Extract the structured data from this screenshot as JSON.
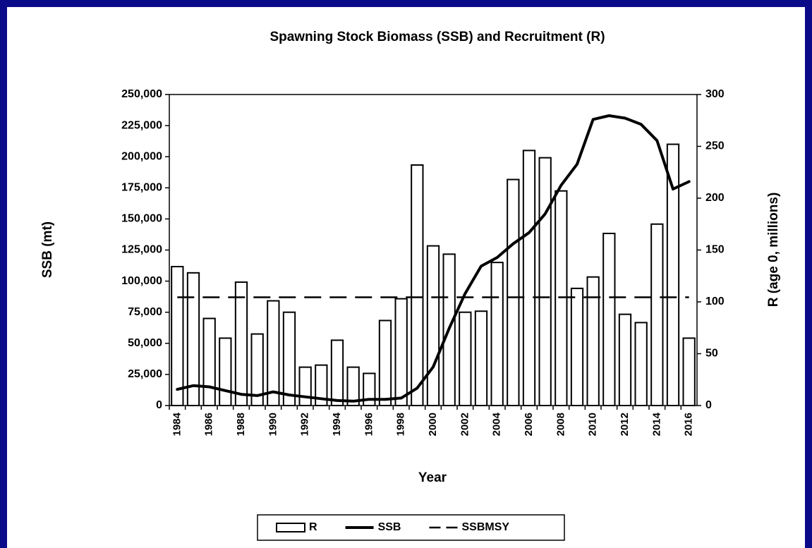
{
  "chart_data": {
    "type": "bar",
    "title": "Spawning Stock Biomass (SSB) and Recruitment (R)",
    "xlabel": "Year",
    "ylabel": "SSB (mt)",
    "y2label": "R (age 0, millions)",
    "categories": [
      "1984",
      null,
      "1986",
      null,
      "1988",
      null,
      "1990",
      null,
      "1992",
      null,
      "1994",
      null,
      "1996",
      null,
      "1998",
      null,
      "2000",
      null,
      "2002",
      null,
      "2004",
      null,
      "2006",
      null,
      "2008",
      null,
      "2010",
      null,
      "2012",
      null,
      "2014",
      null,
      "2016"
    ],
    "ylim": [
      0,
      250000
    ],
    "yticks": [
      0,
      {
        "value": 25000,
        "label": "25,000"
      },
      {
        "value": 50000,
        "label": "50,000"
      },
      {
        "value": 75000,
        "label": "75,000"
      },
      {
        "value": 100000,
        "label": "100,000"
      },
      {
        "value": 125000,
        "label": "125,000"
      },
      {
        "value": 150000,
        "label": "150,000"
      },
      {
        "value": 175000,
        "label": "175,000"
      },
      {
        "value": 200000,
        "label": "200,000"
      },
      {
        "value": 225000,
        "label": "225,000"
      },
      {
        "value": 250000,
        "label": "250,000"
      }
    ],
    "y2lim": [
      0,
      300
    ],
    "y2ticks": [
      0,
      50,
      100,
      150,
      200,
      250,
      300
    ],
    "legend": "bottom",
    "series": [
      {
        "name": "R",
        "type": "bar",
        "axis": "y2",
        "color": "#ffffff",
        "values": [
          134,
          128,
          84,
          65,
          119,
          69,
          101,
          90,
          37,
          39,
          63,
          37,
          31,
          82,
          103,
          232,
          154,
          146,
          90,
          91,
          138,
          218,
          246,
          239,
          207,
          113,
          124,
          166,
          88,
          80,
          175,
          252,
          65
        ]
      },
      {
        "name": "SSB",
        "type": "line",
        "color": "#000000",
        "values": [
          13000,
          16000,
          15000,
          12000,
          9000,
          8000,
          11000,
          8500,
          7000,
          5500,
          4000,
          3500,
          5000,
          5000,
          6000,
          14000,
          31000,
          62000,
          90000,
          112000,
          119000,
          130000,
          139000,
          154000,
          177000,
          194000,
          230000,
          233000,
          231000,
          226000,
          213000,
          174000,
          180000
        ]
      },
      {
        "name": "SSBMSY",
        "type": "line",
        "dashed": true,
        "color": "#000000",
        "values": [
          87000,
          87000,
          87000,
          87000,
          87000,
          87000,
          87000,
          87000,
          87000,
          87000,
          87000,
          87000,
          87000,
          87000,
          87000,
          87000,
          87000,
          87000,
          87000,
          87000,
          87000,
          87000,
          87000,
          87000,
          87000,
          87000,
          87000,
          87000,
          87000,
          87000,
          87000,
          87000,
          87000
        ]
      }
    ]
  }
}
